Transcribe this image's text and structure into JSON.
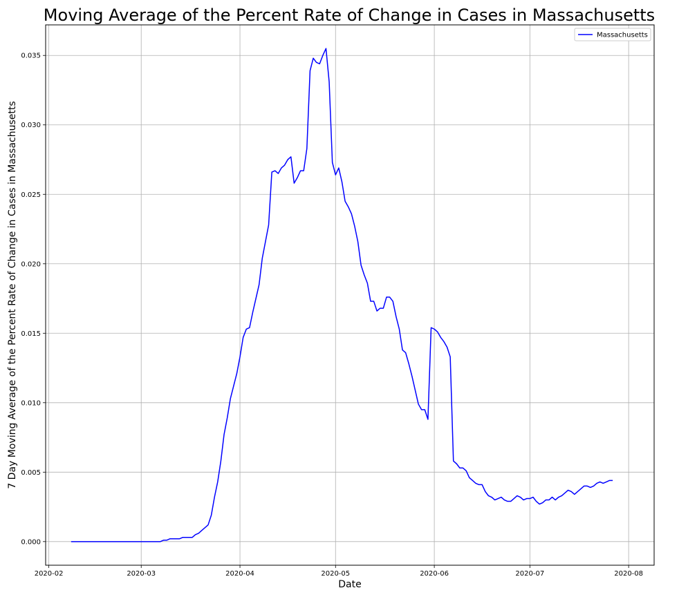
{
  "chart_data": {
    "type": "line",
    "title": "Moving Average of the Percent Rate of Change in Cases in Massachusetts",
    "xlabel": "Date",
    "ylabel": "7 Day Moving Average of the Percent Rate of Change in Cases in Massachusetts",
    "xlim": [
      "2020-01-31",
      "2020-08-09"
    ],
    "ylim": [
      -0.0017,
      0.0372
    ],
    "x_ticks": [
      "2020-02",
      "2020-03",
      "2020-04",
      "2020-05",
      "2020-06",
      "2020-07",
      "2020-08"
    ],
    "y_ticks": [
      "0.000",
      "0.005",
      "0.010",
      "0.015",
      "0.020",
      "0.025",
      "0.030",
      "0.035"
    ],
    "grid": true,
    "legend_position": "top-right",
    "series": [
      {
        "name": "Massachusetts",
        "color": "#0000ff",
        "points": [
          [
            "2020-02-08",
            0.0
          ],
          [
            "2020-02-15",
            0.0
          ],
          [
            "2020-02-22",
            0.0
          ],
          [
            "2020-03-01",
            0.0
          ],
          [
            "2020-03-07",
            0.0
          ],
          [
            "2020-03-08",
            0.0001
          ],
          [
            "2020-03-09",
            0.0001
          ],
          [
            "2020-03-10",
            0.0002
          ],
          [
            "2020-03-12",
            0.0002
          ],
          [
            "2020-03-13",
            0.0002
          ],
          [
            "2020-03-14",
            0.0003
          ],
          [
            "2020-03-17",
            0.0003
          ],
          [
            "2020-03-18",
            0.0005
          ],
          [
            "2020-03-19",
            0.0006
          ],
          [
            "2020-03-20",
            0.0008
          ],
          [
            "2020-03-22",
            0.0012
          ],
          [
            "2020-03-23",
            0.0019
          ],
          [
            "2020-03-24",
            0.0032
          ],
          [
            "2020-03-25",
            0.0043
          ],
          [
            "2020-03-26",
            0.0058
          ],
          [
            "2020-03-27",
            0.0077
          ],
          [
            "2020-03-28",
            0.0089
          ],
          [
            "2020-03-29",
            0.0103
          ],
          [
            "2020-03-30",
            0.0112
          ],
          [
            "2020-03-31",
            0.0121
          ],
          [
            "2020-04-01",
            0.0133
          ],
          [
            "2020-04-02",
            0.0147
          ],
          [
            "2020-04-03",
            0.0153
          ],
          [
            "2020-04-04",
            0.0154
          ],
          [
            "2020-04-05",
            0.0165
          ],
          [
            "2020-04-06",
            0.0175
          ],
          [
            "2020-04-07",
            0.0185
          ],
          [
            "2020-04-08",
            0.0204
          ],
          [
            "2020-04-09",
            0.0216
          ],
          [
            "2020-04-10",
            0.0228
          ],
          [
            "2020-04-11",
            0.0266
          ],
          [
            "2020-04-12",
            0.0267
          ],
          [
            "2020-04-13",
            0.0265
          ],
          [
            "2020-04-14",
            0.0269
          ],
          [
            "2020-04-15",
            0.0271
          ],
          [
            "2020-04-16",
            0.0275
          ],
          [
            "2020-04-17",
            0.0277
          ],
          [
            "2020-04-18",
            0.0258
          ],
          [
            "2020-04-19",
            0.0262
          ],
          [
            "2020-04-20",
            0.0267
          ],
          [
            "2020-04-21",
            0.0267
          ],
          [
            "2020-04-22",
            0.0283
          ],
          [
            "2020-04-23",
            0.0339
          ],
          [
            "2020-04-24",
            0.0348
          ],
          [
            "2020-04-25",
            0.0345
          ],
          [
            "2020-04-26",
            0.0344
          ],
          [
            "2020-04-27",
            0.035
          ],
          [
            "2020-04-28",
            0.0355
          ],
          [
            "2020-04-29",
            0.0331
          ],
          [
            "2020-04-30",
            0.0273
          ],
          [
            "2020-05-01",
            0.0264
          ],
          [
            "2020-05-02",
            0.0269
          ],
          [
            "2020-05-03",
            0.0259
          ],
          [
            "2020-05-04",
            0.0245
          ],
          [
            "2020-05-05",
            0.0241
          ],
          [
            "2020-05-06",
            0.0236
          ],
          [
            "2020-05-07",
            0.0227
          ],
          [
            "2020-05-08",
            0.0216
          ],
          [
            "2020-05-09",
            0.0199
          ],
          [
            "2020-05-10",
            0.0192
          ],
          [
            "2020-05-11",
            0.0186
          ],
          [
            "2020-05-12",
            0.0173
          ],
          [
            "2020-05-13",
            0.0173
          ],
          [
            "2020-05-14",
            0.0166
          ],
          [
            "2020-05-15",
            0.0168
          ],
          [
            "2020-05-16",
            0.0168
          ],
          [
            "2020-05-17",
            0.0176
          ],
          [
            "2020-05-18",
            0.0176
          ],
          [
            "2020-05-19",
            0.0173
          ],
          [
            "2020-05-20",
            0.0162
          ],
          [
            "2020-05-21",
            0.0153
          ],
          [
            "2020-05-22",
            0.0138
          ],
          [
            "2020-05-23",
            0.0136
          ],
          [
            "2020-05-24",
            0.0128
          ],
          [
            "2020-05-25",
            0.0119
          ],
          [
            "2020-05-26",
            0.0109
          ],
          [
            "2020-05-27",
            0.0099
          ],
          [
            "2020-05-28",
            0.0095
          ],
          [
            "2020-05-29",
            0.0095
          ],
          [
            "2020-05-30",
            0.0088
          ],
          [
            "2020-05-31",
            0.0154
          ],
          [
            "2020-06-01",
            0.0153
          ],
          [
            "2020-06-02",
            0.0151
          ],
          [
            "2020-06-03",
            0.0147
          ],
          [
            "2020-06-04",
            0.0144
          ],
          [
            "2020-06-05",
            0.014
          ],
          [
            "2020-06-06",
            0.0133
          ],
          [
            "2020-06-07",
            0.0058
          ],
          [
            "2020-06-08",
            0.0056
          ],
          [
            "2020-06-09",
            0.0053
          ],
          [
            "2020-06-10",
            0.0053
          ],
          [
            "2020-06-11",
            0.0051
          ],
          [
            "2020-06-12",
            0.0046
          ],
          [
            "2020-06-13",
            0.0044
          ],
          [
            "2020-06-14",
            0.0042
          ],
          [
            "2020-06-15",
            0.0041
          ],
          [
            "2020-06-16",
            0.0041
          ],
          [
            "2020-06-17",
            0.0036
          ],
          [
            "2020-06-18",
            0.0033
          ],
          [
            "2020-06-19",
            0.0032
          ],
          [
            "2020-06-20",
            0.003
          ],
          [
            "2020-06-21",
            0.0031
          ],
          [
            "2020-06-22",
            0.0032
          ],
          [
            "2020-06-23",
            0.003
          ],
          [
            "2020-06-24",
            0.0029
          ],
          [
            "2020-06-25",
            0.0029
          ],
          [
            "2020-06-26",
            0.0031
          ],
          [
            "2020-06-27",
            0.0033
          ],
          [
            "2020-06-28",
            0.0032
          ],
          [
            "2020-06-29",
            0.003
          ],
          [
            "2020-06-30",
            0.0031
          ],
          [
            "2020-07-01",
            0.0031
          ],
          [
            "2020-07-02",
            0.0032
          ],
          [
            "2020-07-03",
            0.0029
          ],
          [
            "2020-07-04",
            0.0027
          ],
          [
            "2020-07-05",
            0.0028
          ],
          [
            "2020-07-06",
            0.003
          ],
          [
            "2020-07-07",
            0.003
          ],
          [
            "2020-07-08",
            0.0032
          ],
          [
            "2020-07-09",
            0.003
          ],
          [
            "2020-07-10",
            0.0032
          ],
          [
            "2020-07-11",
            0.0033
          ],
          [
            "2020-07-12",
            0.0035
          ],
          [
            "2020-07-13",
            0.0037
          ],
          [
            "2020-07-14",
            0.0036
          ],
          [
            "2020-07-15",
            0.0034
          ],
          [
            "2020-07-16",
            0.0036
          ],
          [
            "2020-07-17",
            0.0038
          ],
          [
            "2020-07-18",
            0.004
          ],
          [
            "2020-07-19",
            0.004
          ],
          [
            "2020-07-20",
            0.0039
          ],
          [
            "2020-07-21",
            0.004
          ],
          [
            "2020-07-22",
            0.0042
          ],
          [
            "2020-07-23",
            0.0043
          ],
          [
            "2020-07-24",
            0.0042
          ],
          [
            "2020-07-25",
            0.0043
          ],
          [
            "2020-07-26",
            0.0044
          ],
          [
            "2020-07-27",
            0.0044
          ]
        ]
      }
    ]
  }
}
